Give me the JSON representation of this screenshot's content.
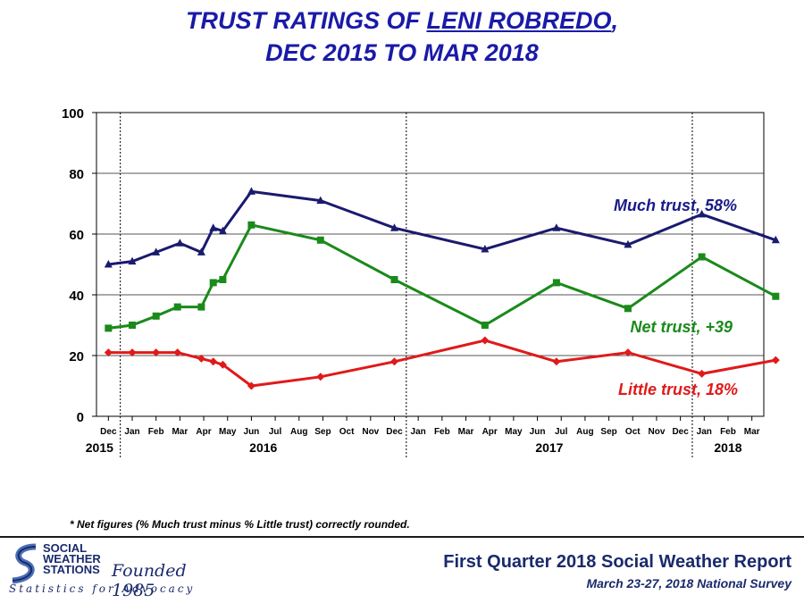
{
  "header": {
    "title_prefix": "TRUST RATINGS OF ",
    "title_name": "LENI ROBREDO",
    "title_comma": ",",
    "title_line2": "DEC 2015 TO MAR 2018"
  },
  "chart_data": {
    "type": "line",
    "ylim": [
      0,
      100
    ],
    "yticks": [
      0,
      20,
      40,
      60,
      80,
      100
    ],
    "grid": true,
    "month_labels": [
      "Dec",
      "Jan",
      "Feb",
      "Mar",
      "Apr",
      "May",
      "Jun",
      "Jul",
      "Aug",
      "Sep",
      "Oct",
      "Nov",
      "Dec",
      "Jan",
      "Feb",
      "Mar",
      "Apr",
      "May",
      "Jun",
      "Jul",
      "Aug",
      "Sep",
      "Oct",
      "Nov",
      "Dec",
      "Jan",
      "Feb",
      "Mar"
    ],
    "year_labels": [
      {
        "label": "2015",
        "start": 0,
        "end": 0
      },
      {
        "label": "2016",
        "start": 1,
        "end": 12
      },
      {
        "label": "2017",
        "start": 13,
        "end": 24
      },
      {
        "label": "2018",
        "start": 25,
        "end": 27
      }
    ],
    "year_dividers": [
      0.5,
      12.5,
      24.5
    ],
    "series": [
      {
        "name": "Much trust",
        "color": "#1a1a6e",
        "marker": "triangle",
        "points": [
          [
            0,
            50
          ],
          [
            1,
            51
          ],
          [
            2,
            54
          ],
          [
            3,
            57
          ],
          [
            3.9,
            54
          ],
          [
            4.4,
            62
          ],
          [
            4.8,
            61
          ],
          [
            6,
            74
          ],
          [
            8.9,
            71
          ],
          [
            12,
            62
          ],
          [
            15.8,
            55
          ],
          [
            18.8,
            62
          ],
          [
            21.8,
            56.5
          ],
          [
            24.9,
            66.5
          ],
          [
            28,
            58
          ]
        ]
      },
      {
        "name": "Net trust",
        "color": "#1a8a1a",
        "marker": "square",
        "points": [
          [
            0,
            29
          ],
          [
            1,
            30
          ],
          [
            2,
            33
          ],
          [
            2.9,
            36
          ],
          [
            3.9,
            36
          ],
          [
            4.4,
            44
          ],
          [
            4.8,
            45
          ],
          [
            6,
            63
          ],
          [
            8.9,
            58
          ],
          [
            12,
            45
          ],
          [
            15.8,
            30
          ],
          [
            18.8,
            44
          ],
          [
            21.8,
            35.5
          ],
          [
            24.9,
            52.5
          ],
          [
            28,
            39.5
          ]
        ]
      },
      {
        "name": "Little trust",
        "color": "#e01a1a",
        "marker": "diamond",
        "points": [
          [
            0,
            21
          ],
          [
            1,
            21
          ],
          [
            2,
            21
          ],
          [
            2.9,
            21
          ],
          [
            3.9,
            19
          ],
          [
            4.4,
            18
          ],
          [
            4.8,
            17
          ],
          [
            6,
            10
          ],
          [
            8.9,
            13
          ],
          [
            12,
            18
          ],
          [
            15.8,
            25
          ],
          [
            18.8,
            18
          ],
          [
            21.8,
            21
          ],
          [
            24.9,
            14
          ],
          [
            28,
            18.5
          ]
        ]
      }
    ],
    "annotations": [
      {
        "text": "Much trust, 58%",
        "color": "#1a1a8a",
        "series": "Much trust"
      },
      {
        "text": "Net trust, +39",
        "color": "#1a8a1a",
        "series": "Net trust"
      },
      {
        "text": "Little trust, 18%",
        "color": "#e01a1a",
        "series": "Little trust"
      }
    ]
  },
  "footnote": "* Net figures (% Much trust minus % Little trust) correctly  rounded.",
  "footer": {
    "logo_line1": "SOCIAL",
    "logo_line2": "WEATHER",
    "logo_line3": "STATIONS",
    "founded": "Founded 1985",
    "tagline": "Statistics for Advocacy",
    "report_title": "First Quarter 2018 Social Weather Report",
    "survey": "March 23-27, 2018 National Survey"
  }
}
